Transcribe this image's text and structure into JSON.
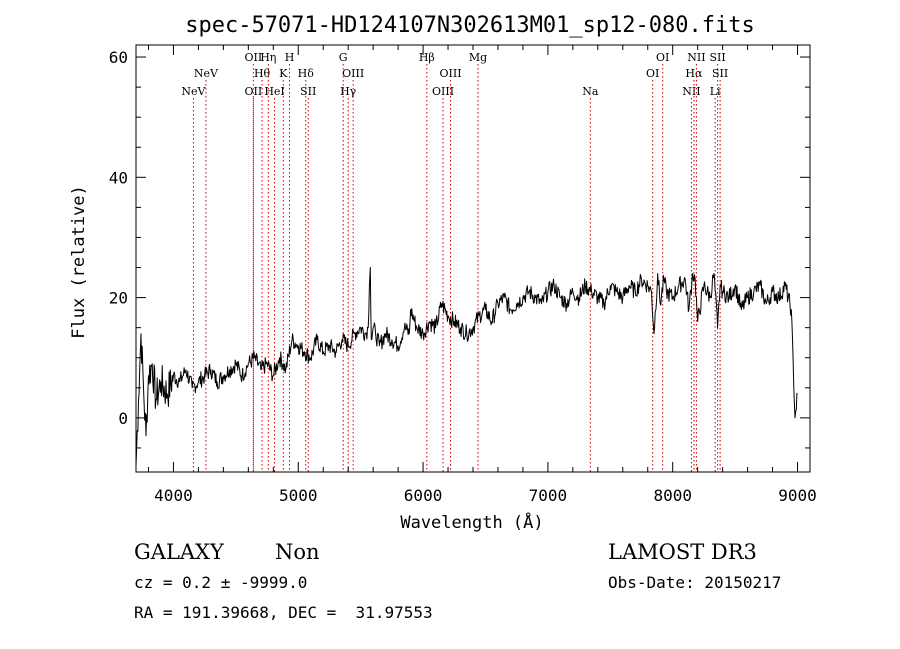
{
  "chart_data": {
    "type": "line",
    "title": "spec-57071-HD124107N302613M01_sp12-080.fits",
    "xlabel": "Wavelength (Å)",
    "ylabel": "Flux (relative)",
    "xlim": [
      3700,
      9100
    ],
    "ylim": [
      -9,
      62
    ],
    "xticks": [
      4000,
      5000,
      6000,
      7000,
      8000,
      9000
    ],
    "yticks": [
      0,
      20,
      40,
      60
    ],
    "series": [
      {
        "name": "flux",
        "color": "#000000",
        "x": [
          3700,
          3720,
          3740,
          3760,
          3780,
          3800,
          3830,
          3860,
          3900,
          3950,
          4000,
          4050,
          4100,
          4150,
          4200,
          4250,
          4300,
          4350,
          4400,
          4450,
          4500,
          4550,
          4600,
          4650,
          4700,
          4750,
          4800,
          4850,
          4880,
          4900,
          4950,
          5000,
          5050,
          5100,
          5150,
          5200,
          5250,
          5300,
          5350,
          5400,
          5450,
          5500,
          5540,
          5560,
          5570,
          5577,
          5585,
          5600,
          5620,
          5650,
          5700,
          5750,
          5800,
          5850,
          5890,
          5900,
          5950,
          6000,
          6050,
          6100,
          6150,
          6200,
          6250,
          6300,
          6350,
          6400,
          6450,
          6500,
          6550,
          6600,
          6650,
          6700,
          6750,
          6800,
          6850,
          6900,
          6950,
          7000,
          7050,
          7100,
          7150,
          7200,
          7250,
          7300,
          7350,
          7400,
          7450,
          7500,
          7550,
          7600,
          7650,
          7700,
          7750,
          7800,
          7830,
          7850,
          7880,
          7900,
          7930,
          7950,
          8000,
          8050,
          8100,
          8130,
          8160,
          8180,
          8200,
          8250,
          8300,
          8330,
          8360,
          8380,
          8400,
          8450,
          8500,
          8550,
          8600,
          8650,
          8700,
          8750,
          8800,
          8850,
          8900,
          8950,
          8980,
          9000
        ],
        "values": [
          -8,
          3,
          14,
          5,
          -3,
          7,
          9,
          3,
          6,
          4,
          7,
          6,
          8,
          5,
          6,
          7,
          8,
          6,
          7,
          8,
          9,
          7,
          9,
          10,
          8,
          9,
          7,
          10,
          9,
          8,
          13,
          12,
          11,
          10,
          13,
          11,
          12,
          11,
          13,
          12,
          14,
          15,
          14,
          15,
          22,
          25,
          13,
          15,
          14,
          12,
          14,
          13,
          12,
          15,
          14,
          18,
          15,
          14,
          16,
          15,
          19,
          17,
          16,
          15,
          14,
          15,
          17,
          18,
          16,
          19,
          20,
          18,
          19,
          20,
          21,
          20,
          19,
          21,
          22,
          20,
          19,
          21,
          20,
          22,
          21,
          20,
          19,
          22,
          21,
          20,
          22,
          21,
          23,
          22,
          21,
          14,
          24,
          19,
          23,
          21,
          20,
          22,
          23,
          18,
          24,
          23,
          16,
          22,
          20,
          24,
          15,
          22,
          21,
          20,
          22,
          18,
          20,
          21,
          22,
          19,
          21,
          20,
          22,
          18,
          0,
          4
        ]
      }
    ],
    "line_markers": [
      {
        "label": "NeV",
        "x": 4160,
        "tier": 3
      },
      {
        "label": "NeV",
        "x": 4260,
        "tier": 2
      },
      {
        "label": "OII",
        "x": 4640,
        "tier": 3
      },
      {
        "label": "OII",
        "x": 4640,
        "tier": 1
      },
      {
        "label": "Hθ",
        "x": 4710,
        "tier": 2
      },
      {
        "label": "Hη",
        "x": 4760,
        "tier": 1
      },
      {
        "label": "HeI",
        "x": 4810,
        "tier": 3
      },
      {
        "label": "K",
        "x": 4880,
        "tier": 2
      },
      {
        "label": "H",
        "x": 4930,
        "tier": 1
      },
      {
        "label": "Hδ",
        "x": 5060,
        "tier": 2
      },
      {
        "label": "SII",
        "x": 5080,
        "tier": 3
      },
      {
        "label": "G",
        "x": 5360,
        "tier": 1
      },
      {
        "label": "Hγ",
        "x": 5400,
        "tier": 3
      },
      {
        "label": "OIII",
        "x": 5440,
        "tier": 2
      },
      {
        "label": "Hβ",
        "x": 6030,
        "tier": 1
      },
      {
        "label": "OIII",
        "x": 6160,
        "tier": 3
      },
      {
        "label": "OIII",
        "x": 6220,
        "tier": 2
      },
      {
        "label": "Mg",
        "x": 6440,
        "tier": 1
      },
      {
        "label": "Na",
        "x": 7340,
        "tier": 3
      },
      {
        "label": "OI",
        "x": 7840,
        "tier": 2
      },
      {
        "label": "OI",
        "x": 7920,
        "tier": 1
      },
      {
        "label": "NII",
        "x": 8150,
        "tier": 3
      },
      {
        "label": "Hα",
        "x": 8170,
        "tier": 2
      },
      {
        "label": "NII",
        "x": 8190,
        "tier": 1
      },
      {
        "label": "Li",
        "x": 8340,
        "tier": 3
      },
      {
        "label": "SII",
        "x": 8360,
        "tier": 1
      },
      {
        "label": "SII",
        "x": 8380,
        "tier": 2
      }
    ]
  },
  "info": {
    "object_class": "GALAXY",
    "subclass": "Non",
    "cz_line": "cz = 0.2 ± -9999.0",
    "radec_line": "RA = 191.39668, DEC =  31.97553",
    "survey": "LAMOST DR3",
    "obs_date": "Obs-Date: 20150217"
  }
}
